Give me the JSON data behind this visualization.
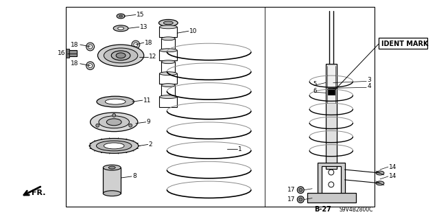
{
  "bg_color": "#ffffff",
  "line_color": "#000000",
  "text_color": "#000000",
  "ident_mark_label": "IDENT MARK",
  "b27_label": "B-27",
  "fr_label": "FR.",
  "code_label": "S9V4B2800C",
  "figsize": [
    6.4,
    3.19
  ],
  "dpi": 100
}
